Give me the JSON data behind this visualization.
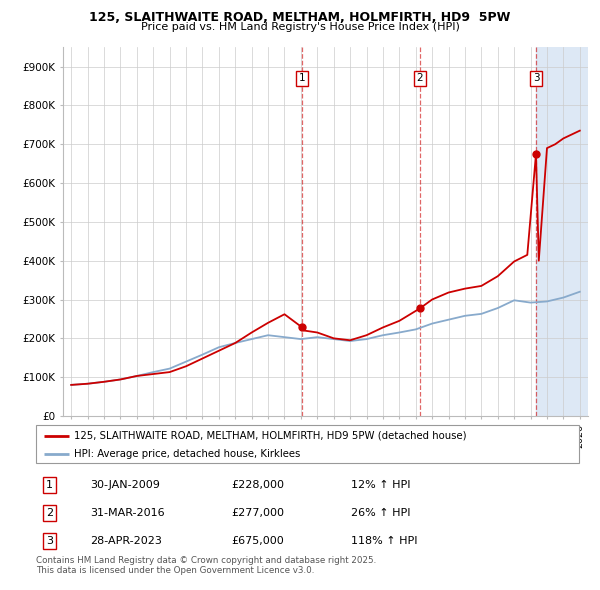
{
  "title": "125, SLAITHWAITE ROAD, MELTHAM, HOLMFIRTH, HD9  5PW",
  "subtitle": "Price paid vs. HM Land Registry's House Price Index (HPI)",
  "red_line_label": "125, SLAITHWAITE ROAD, MELTHAM, HOLMFIRTH, HD9 5PW (detached house)",
  "blue_line_label": "HPI: Average price, detached house, Kirklees",
  "sales": [
    {
      "date": "30-JAN-2009",
      "price": 228000,
      "hpi_pct": "12%",
      "label": "1",
      "year": 2009.08
    },
    {
      "date": "31-MAR-2016",
      "price": 277000,
      "hpi_pct": "26%",
      "label": "2",
      "year": 2016.25
    },
    {
      "date": "28-APR-2023",
      "price": 675000,
      "hpi_pct": "118%",
      "label": "3",
      "year": 2023.33
    }
  ],
  "footer": "Contains HM Land Registry data © Crown copyright and database right 2025.\nThis data is licensed under the Open Government Licence v3.0.",
  "ylim": [
    0,
    950000
  ],
  "xlim": [
    1994.5,
    2026.5
  ],
  "yticks": [
    0,
    100000,
    200000,
    300000,
    400000,
    500000,
    600000,
    700000,
    800000,
    900000
  ],
  "ytick_labels": [
    "£0",
    "£100K",
    "£200K",
    "£300K",
    "£400K",
    "£500K",
    "£600K",
    "£700K",
    "£800K",
    "£900K"
  ],
  "background_color": "#ffffff",
  "plot_bg_color": "#f0f4ff",
  "grid_color": "#cccccc",
  "red_color": "#cc0000",
  "blue_color": "#88aacc",
  "shade_color": "#dde8f5",
  "shade_start": 2023.33,
  "shade_end": 2026.5,
  "hpi_years": [
    1995,
    1996,
    1997,
    1998,
    1999,
    2000,
    2001,
    2002,
    2003,
    2004,
    2005,
    2006,
    2007,
    2008,
    2009,
    2010,
    2011,
    2012,
    2013,
    2014,
    2015,
    2016,
    2017,
    2018,
    2019,
    2020,
    2021,
    2022,
    2023,
    2024,
    2025,
    2026
  ],
  "hpi_values": [
    80000,
    83000,
    88000,
    94000,
    103000,
    113000,
    122000,
    140000,
    158000,
    177000,
    188000,
    198000,
    208000,
    203000,
    198000,
    203000,
    198000,
    193000,
    198000,
    208000,
    215000,
    223000,
    238000,
    248000,
    258000,
    263000,
    278000,
    298000,
    292000,
    295000,
    305000,
    320000
  ],
  "red_years": [
    1995,
    1996,
    1997,
    1998,
    1999,
    2000,
    2001,
    2002,
    2003,
    2004,
    2005,
    2006,
    2007,
    2008,
    2009.08,
    2009.2,
    2010,
    2011,
    2012,
    2013,
    2014,
    2015,
    2016.25,
    2017,
    2018,
    2019,
    2020,
    2021,
    2022,
    2022.8,
    2023.33,
    2023.5,
    2024,
    2024.5,
    2025,
    2025.5,
    2026
  ],
  "red_values": [
    80000,
    83000,
    88000,
    94000,
    103000,
    108000,
    113000,
    128000,
    148000,
    168000,
    188000,
    215000,
    240000,
    262000,
    228000,
    220000,
    215000,
    200000,
    195000,
    208000,
    228000,
    245000,
    277000,
    300000,
    318000,
    328000,
    335000,
    360000,
    398000,
    415000,
    675000,
    400000,
    690000,
    700000,
    715000,
    725000,
    735000
  ]
}
